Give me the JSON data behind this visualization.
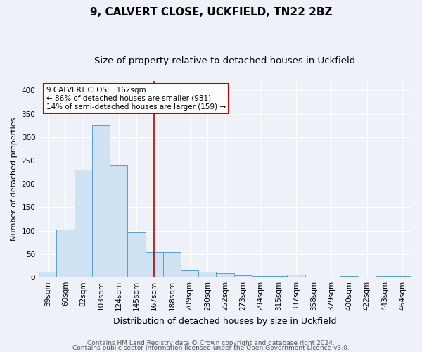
{
  "title1": "9, CALVERT CLOSE, UCKFIELD, TN22 2BZ",
  "title2": "Size of property relative to detached houses in Uckfield",
  "xlabel": "Distribution of detached houses by size in Uckfield",
  "ylabel": "Number of detached properties",
  "categories": [
    "39sqm",
    "60sqm",
    "82sqm",
    "103sqm",
    "124sqm",
    "145sqm",
    "167sqm",
    "188sqm",
    "209sqm",
    "230sqm",
    "252sqm",
    "273sqm",
    "294sqm",
    "315sqm",
    "337sqm",
    "358sqm",
    "379sqm",
    "400sqm",
    "422sqm",
    "443sqm",
    "464sqm"
  ],
  "values": [
    12,
    103,
    230,
    325,
    240,
    96,
    55,
    55,
    15,
    13,
    9,
    5,
    4,
    3,
    7,
    0,
    0,
    3,
    0,
    4,
    3
  ],
  "bar_color": "#cfe2f3",
  "bar_edge_color": "#5b9bd5",
  "vline_x": 6,
  "vline_color": "#c00000",
  "annotation_text": "9 CALVERT CLOSE: 162sqm\n← 86% of detached houses are smaller (981)\n14% of semi-detached houses are larger (159) →",
  "annotation_box_color": "#ffffff",
  "annotation_box_edge": "#c00000",
  "ylim": [
    0,
    420
  ],
  "yticks": [
    0,
    50,
    100,
    150,
    200,
    250,
    300,
    350,
    400
  ],
  "footer1": "Contains HM Land Registry data © Crown copyright and database right 2024.",
  "footer2": "Contains public sector information licensed under the Open Government Licence v3.0.",
  "bg_color": "#eef2f8",
  "title1_fontsize": 11,
  "title2_fontsize": 9.5,
  "xlabel_fontsize": 9,
  "ylabel_fontsize": 8,
  "tick_fontsize": 7.5,
  "footer_fontsize": 6.5
}
